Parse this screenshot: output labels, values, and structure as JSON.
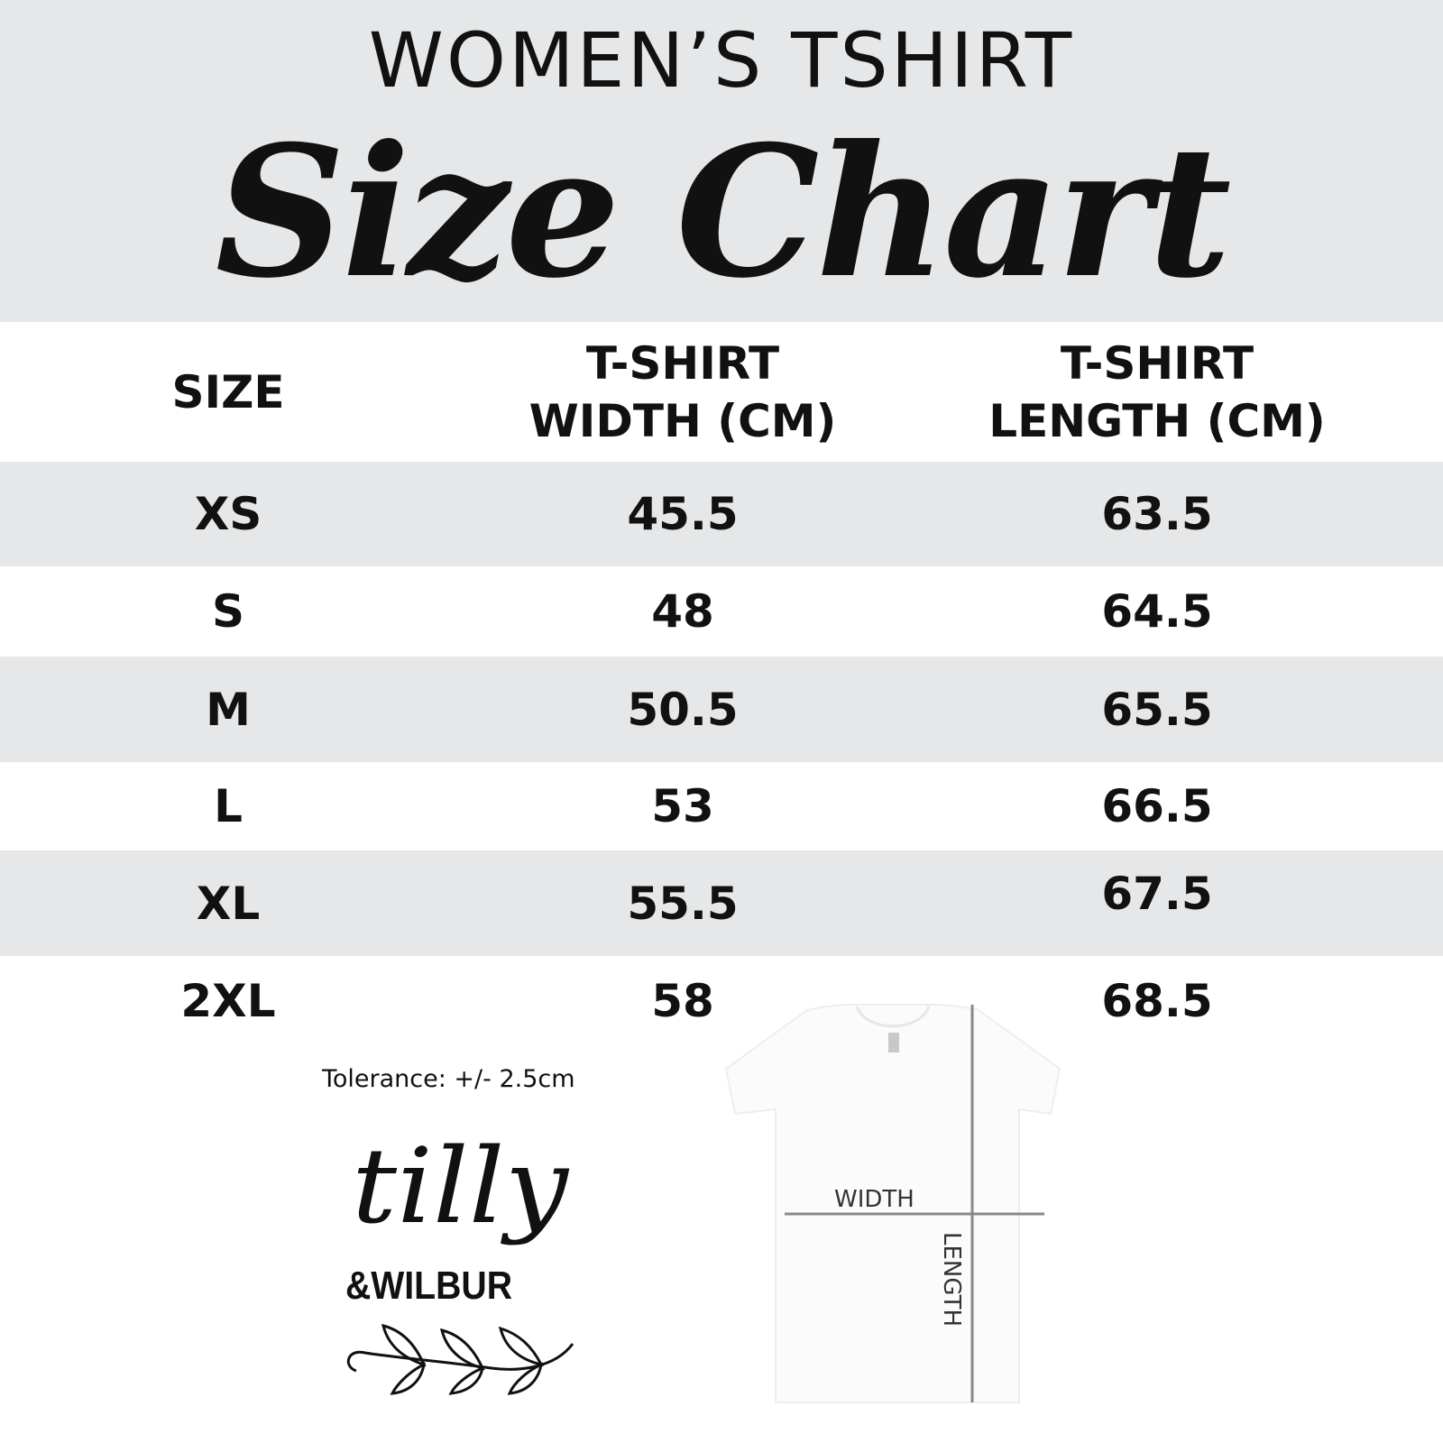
{
  "header": {
    "subtitle": "WOMEN’S TSHIRT",
    "title": "Size Chart"
  },
  "table": {
    "columns": [
      "SIZE",
      "T-SHIRT\nWIDTH (CM)",
      "T-SHIRT\nLENGTH (CM)"
    ],
    "rows": [
      {
        "size": "XS",
        "width": "45.5",
        "length": "63.5"
      },
      {
        "size": "S",
        "width": "48",
        "length": "64.5"
      },
      {
        "size": "M",
        "width": "50.5",
        "length": "65.5"
      },
      {
        "size": "L",
        "width": "53",
        "length": "66.5"
      },
      {
        "size": "XL",
        "width": "55.5",
        "length": "67.5"
      },
      {
        "size": "2XL",
        "width": "58",
        "length": "68.5"
      }
    ]
  },
  "tolerance": "Tolerance: +/- 2.5cm",
  "logo": {
    "line1": "tilly",
    "line2": "&WILBUR"
  },
  "diagram": {
    "width_label": "WIDTH",
    "length_label": "LENGTH"
  },
  "colors": {
    "band": "#e6e7e8",
    "text": "#111111",
    "measure_line": "#888888"
  }
}
